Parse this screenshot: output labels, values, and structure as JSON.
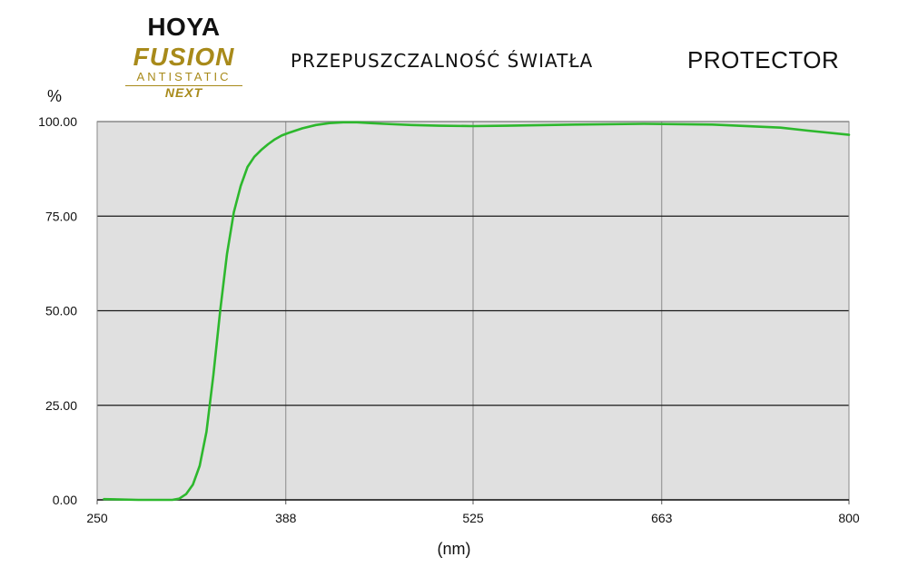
{
  "logo": {
    "brand": "HOYA",
    "line1": "FUSION",
    "line2": "ANTISTATIC",
    "line3": "NEXT"
  },
  "colors": {
    "series": "#2db82d",
    "plot_background": "#e0e0e0",
    "gridline_major": "#1a1a1a",
    "gridline_vertical": "#8a8a8a",
    "logo_gold": "#a88a1a"
  },
  "chart_data": {
    "type": "line",
    "title": "PRZEPUSZCZALNOŚĆ ŚWIATŁA",
    "subtitle": "PROTECTOR",
    "xlabel": "(nm)",
    "ylabel": "%",
    "xlim": [
      250,
      800
    ],
    "ylim": [
      0,
      100
    ],
    "x_ticks": [
      "250",
      "388",
      "525",
      "663",
      "800"
    ],
    "y_ticks": [
      "0.00",
      "25.00",
      "50.00",
      "75.00",
      "100.00"
    ],
    "grid": true,
    "series": [
      {
        "x": [
          255,
          280,
          305,
          310,
          315,
          320,
          325,
          330,
          335,
          340,
          345,
          350,
          355,
          360,
          365,
          370,
          375,
          380,
          385,
          390,
          395,
          400,
          410,
          420,
          430,
          440,
          450,
          460,
          480,
          500,
          525,
          550,
          600,
          650,
          700,
          750,
          770,
          800
        ],
        "y": [
          0.2,
          0,
          0,
          0.3,
          1.5,
          4,
          9,
          18,
          33,
          50,
          65,
          76,
          83,
          88,
          90.7,
          92.5,
          94,
          95.3,
          96.3,
          97,
          97.6,
          98.2,
          99.1,
          99.6,
          99.8,
          99.8,
          99.6,
          99.4,
          99.1,
          98.9,
          98.8,
          98.9,
          99.2,
          99.4,
          99.2,
          98.4,
          97.6,
          96.5
        ]
      }
    ]
  }
}
